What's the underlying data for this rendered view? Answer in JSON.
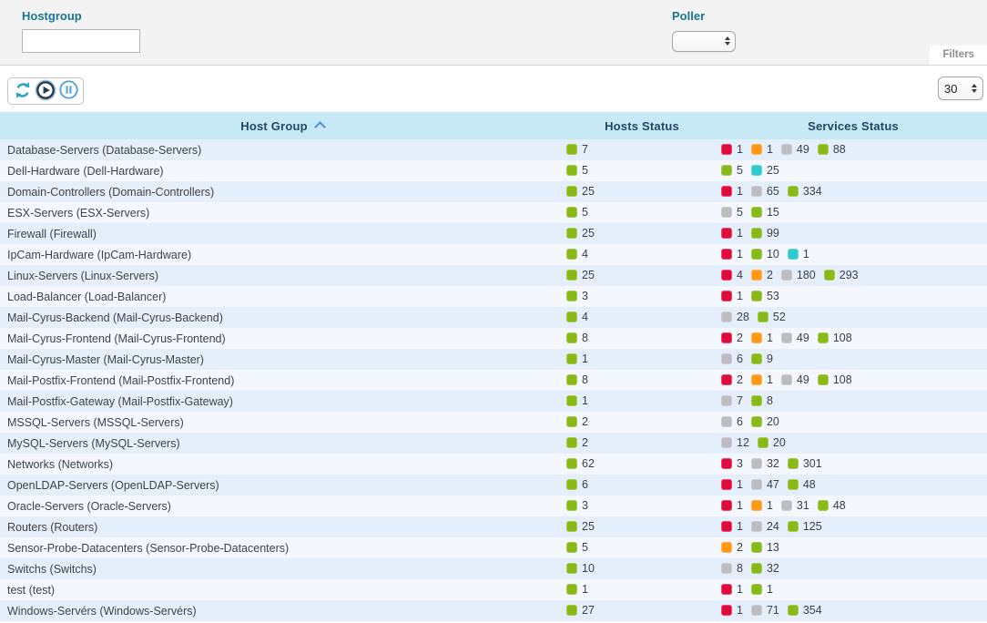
{
  "filters": {
    "hostgroup_label": "Hostgroup",
    "hostgroup_value": "",
    "hostgroup_placeholder": "",
    "poller_label": "Poller",
    "poller_value": "",
    "tab_label": "Filters"
  },
  "toolbar": {
    "refresh_icon": "refresh-arrows",
    "play_icon": "play-circle",
    "pause_icon": "pause-circle",
    "page_size": "30"
  },
  "table": {
    "columns": [
      "Host Group",
      "Hosts Status",
      "Services Status"
    ],
    "sort": {
      "column": "Host Group",
      "direction": "asc"
    },
    "rows": [
      {
        "name": "Database-Servers (Database-Servers)",
        "hosts": [
          {
            "type": "up",
            "count": 7
          }
        ],
        "services": [
          {
            "type": "critical",
            "count": 1
          },
          {
            "type": "warning",
            "count": 1
          },
          {
            "type": "unknown",
            "count": 49
          },
          {
            "type": "ok",
            "count": 88
          }
        ]
      },
      {
        "name": "Dell-Hardware (Dell-Hardware)",
        "hosts": [
          {
            "type": "up",
            "count": 5
          }
        ],
        "services": [
          {
            "type": "ok",
            "count": 5
          },
          {
            "type": "pending",
            "count": 25
          }
        ]
      },
      {
        "name": "Domain-Controllers (Domain-Controllers)",
        "hosts": [
          {
            "type": "up",
            "count": 25
          }
        ],
        "services": [
          {
            "type": "critical",
            "count": 1
          },
          {
            "type": "unknown",
            "count": 65
          },
          {
            "type": "ok",
            "count": 334
          }
        ]
      },
      {
        "name": "ESX-Servers (ESX-Servers)",
        "hosts": [
          {
            "type": "up",
            "count": 5
          }
        ],
        "services": [
          {
            "type": "unknown",
            "count": 5
          },
          {
            "type": "ok",
            "count": 15
          }
        ]
      },
      {
        "name": "Firewall (Firewall)",
        "hosts": [
          {
            "type": "up",
            "count": 25
          }
        ],
        "services": [
          {
            "type": "critical",
            "count": 1
          },
          {
            "type": "ok",
            "count": 99
          }
        ]
      },
      {
        "name": "IpCam-Hardware (IpCam-Hardware)",
        "hosts": [
          {
            "type": "up",
            "count": 4
          }
        ],
        "services": [
          {
            "type": "critical",
            "count": 1
          },
          {
            "type": "ok",
            "count": 10
          },
          {
            "type": "pending",
            "count": 1
          }
        ]
      },
      {
        "name": "Linux-Servers (Linux-Servers)",
        "hosts": [
          {
            "type": "up",
            "count": 25
          }
        ],
        "services": [
          {
            "type": "critical",
            "count": 4
          },
          {
            "type": "warning",
            "count": 2
          },
          {
            "type": "unknown",
            "count": 180
          },
          {
            "type": "ok",
            "count": 293
          }
        ]
      },
      {
        "name": "Load-Balancer (Load-Balancer)",
        "hosts": [
          {
            "type": "up",
            "count": 3
          }
        ],
        "services": [
          {
            "type": "critical",
            "count": 1
          },
          {
            "type": "ok",
            "count": 53
          }
        ]
      },
      {
        "name": "Mail-Cyrus-Backend (Mail-Cyrus-Backend)",
        "hosts": [
          {
            "type": "up",
            "count": 4
          }
        ],
        "services": [
          {
            "type": "unknown",
            "count": 28
          },
          {
            "type": "ok",
            "count": 52
          }
        ]
      },
      {
        "name": "Mail-Cyrus-Frontend (Mail-Cyrus-Frontend)",
        "hosts": [
          {
            "type": "up",
            "count": 8
          }
        ],
        "services": [
          {
            "type": "critical",
            "count": 2
          },
          {
            "type": "warning",
            "count": 1
          },
          {
            "type": "unknown",
            "count": 49
          },
          {
            "type": "ok",
            "count": 108
          }
        ]
      },
      {
        "name": "Mail-Cyrus-Master (Mail-Cyrus-Master)",
        "hosts": [
          {
            "type": "up",
            "count": 1
          }
        ],
        "services": [
          {
            "type": "unknown",
            "count": 6
          },
          {
            "type": "ok",
            "count": 9
          }
        ]
      },
      {
        "name": "Mail-Postfix-Frontend (Mail-Postfix-Frontend)",
        "hosts": [
          {
            "type": "up",
            "count": 8
          }
        ],
        "services": [
          {
            "type": "critical",
            "count": 2
          },
          {
            "type": "warning",
            "count": 1
          },
          {
            "type": "unknown",
            "count": 49
          },
          {
            "type": "ok",
            "count": 108
          }
        ]
      },
      {
        "name": "Mail-Postfix-Gateway (Mail-Postfix-Gateway)",
        "hosts": [
          {
            "type": "up",
            "count": 1
          }
        ],
        "services": [
          {
            "type": "unknown",
            "count": 7
          },
          {
            "type": "ok",
            "count": 8
          }
        ]
      },
      {
        "name": "MSSQL-Servers (MSSQL-Servers)",
        "hosts": [
          {
            "type": "up",
            "count": 2
          }
        ],
        "services": [
          {
            "type": "unknown",
            "count": 6
          },
          {
            "type": "ok",
            "count": 20
          }
        ]
      },
      {
        "name": "MySQL-Servers (MySQL-Servers)",
        "hosts": [
          {
            "type": "up",
            "count": 2
          }
        ],
        "services": [
          {
            "type": "unknown",
            "count": 12
          },
          {
            "type": "ok",
            "count": 20
          }
        ]
      },
      {
        "name": "Networks (Networks)",
        "hosts": [
          {
            "type": "up",
            "count": 62
          }
        ],
        "services": [
          {
            "type": "critical",
            "count": 3
          },
          {
            "type": "unknown",
            "count": 32
          },
          {
            "type": "ok",
            "count": 301
          }
        ]
      },
      {
        "name": "OpenLDAP-Servers (OpenLDAP-Servers)",
        "hosts": [
          {
            "type": "up",
            "count": 6
          }
        ],
        "services": [
          {
            "type": "critical",
            "count": 1
          },
          {
            "type": "unknown",
            "count": 47
          },
          {
            "type": "ok",
            "count": 48
          }
        ]
      },
      {
        "name": "Oracle-Servers (Oracle-Servers)",
        "hosts": [
          {
            "type": "up",
            "count": 3
          }
        ],
        "services": [
          {
            "type": "critical",
            "count": 1
          },
          {
            "type": "warning",
            "count": 1
          },
          {
            "type": "unknown",
            "count": 31
          },
          {
            "type": "ok",
            "count": 48
          }
        ]
      },
      {
        "name": "Routers (Routers)",
        "hosts": [
          {
            "type": "up",
            "count": 25
          }
        ],
        "services": [
          {
            "type": "critical",
            "count": 1
          },
          {
            "type": "unknown",
            "count": 24
          },
          {
            "type": "ok",
            "count": 125
          }
        ]
      },
      {
        "name": "Sensor-Probe-Datacenters (Sensor-Probe-Datacenters)",
        "hosts": [
          {
            "type": "up",
            "count": 5
          }
        ],
        "services": [
          {
            "type": "warning",
            "count": 2
          },
          {
            "type": "ok",
            "count": 13
          }
        ]
      },
      {
        "name": "Switchs (Switchs)",
        "hosts": [
          {
            "type": "up",
            "count": 10
          }
        ],
        "services": [
          {
            "type": "unknown",
            "count": 8
          },
          {
            "type": "ok",
            "count": 32
          }
        ]
      },
      {
        "name": "test (test)",
        "hosts": [
          {
            "type": "up",
            "count": 1
          }
        ],
        "services": [
          {
            "type": "critical",
            "count": 1
          },
          {
            "type": "ok",
            "count": 1
          }
        ]
      },
      {
        "name": "Windows-Servérs (Windows-Servérs)",
        "hosts": [
          {
            "type": "up",
            "count": 27
          }
        ],
        "services": [
          {
            "type": "critical",
            "count": 1
          },
          {
            "type": "unknown",
            "count": 71
          },
          {
            "type": "ok",
            "count": 354
          }
        ]
      }
    ]
  },
  "colors": {
    "up": "#88b917",
    "ok": "#88b917",
    "critical": "#e00b3d",
    "warning": "#ff9913",
    "unknown": "#bcbdc0",
    "pending": "#30c9cf"
  }
}
